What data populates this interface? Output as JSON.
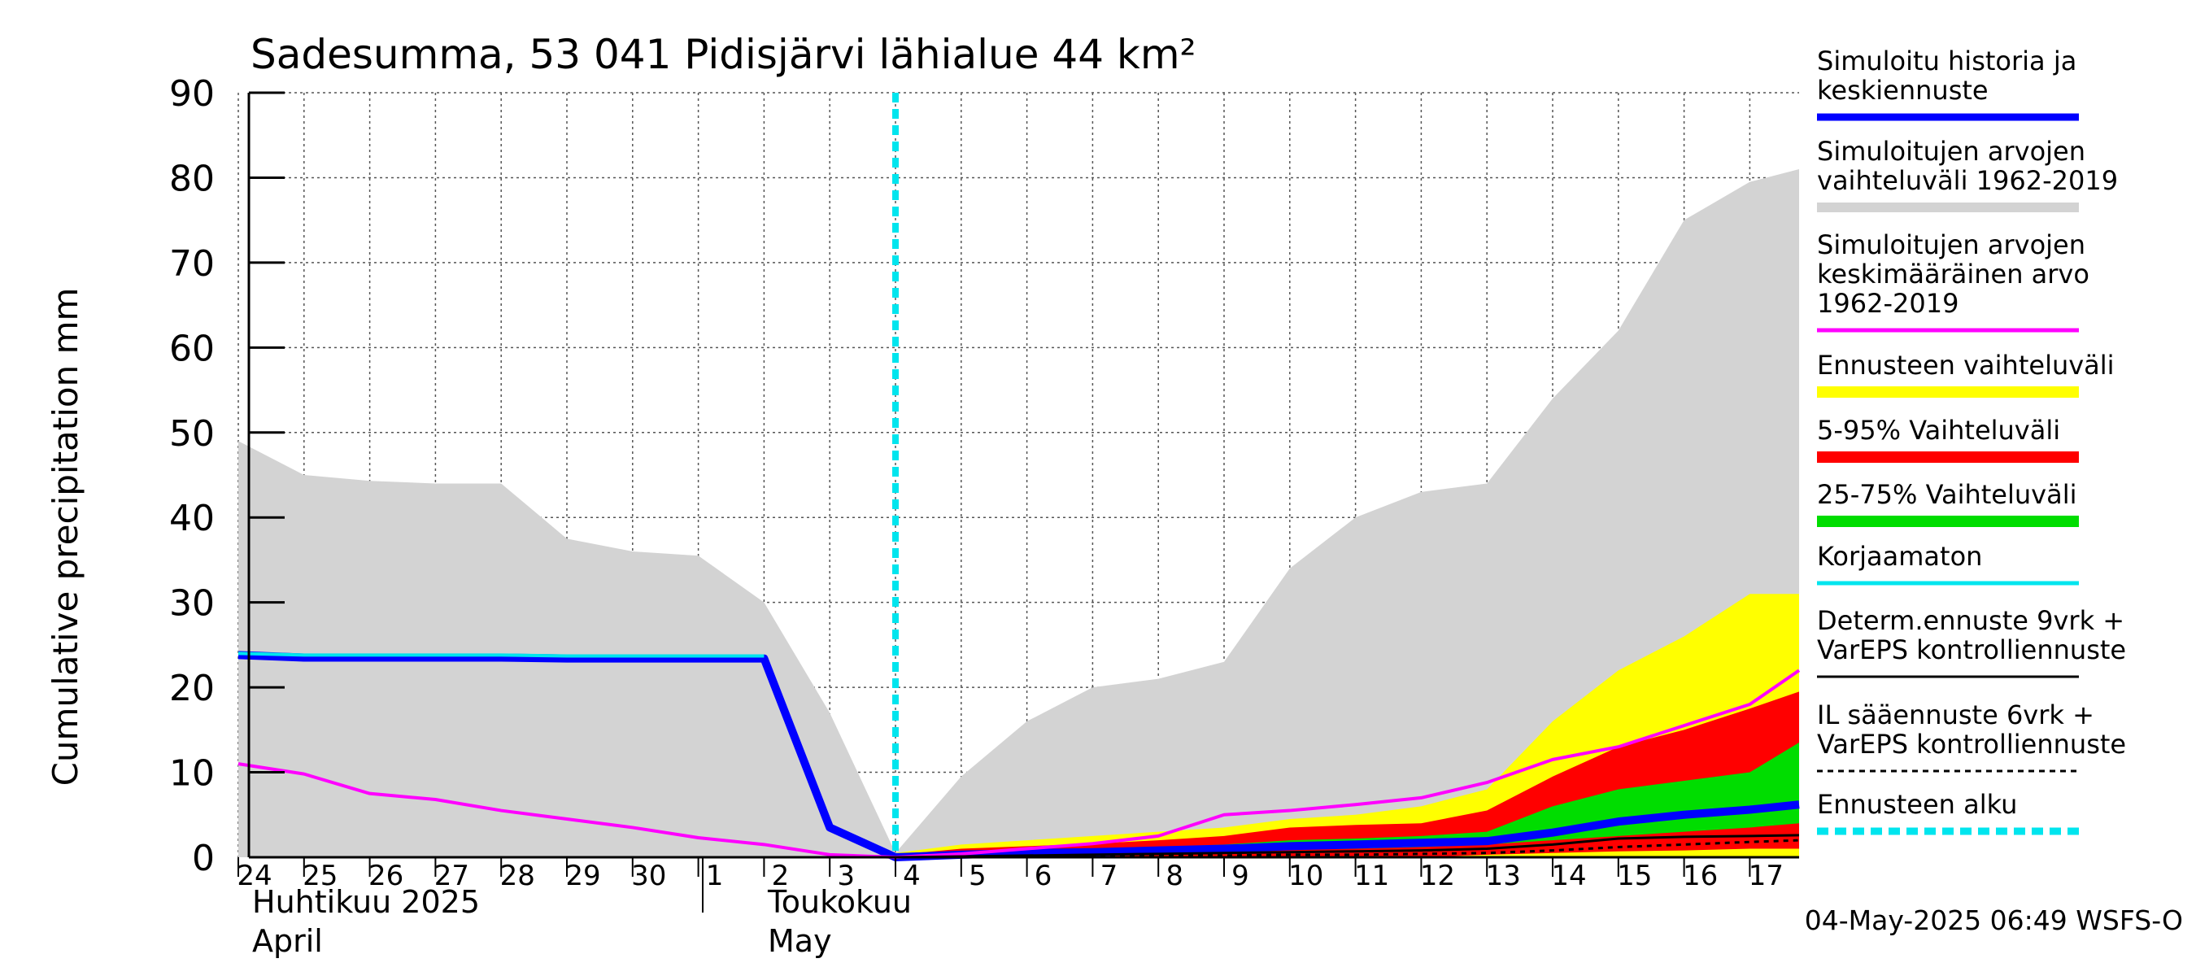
{
  "chart_data": {
    "type": "area",
    "title": "Sadesumma, 53 041 Pidisjärvi lähialue 44 km²",
    "ylabel": "Cumulative precipitation   mm",
    "ylim": [
      0,
      90
    ],
    "yticks": [
      "0",
      "10",
      "20",
      "30",
      "40",
      "50",
      "60",
      "70",
      "80",
      "90"
    ],
    "grid": true,
    "legend_position": "right",
    "x_days": [
      -10,
      -9,
      -8,
      -7,
      -6,
      -5,
      -4,
      -3,
      -2,
      -1,
      0,
      1,
      2,
      3,
      4,
      5,
      6,
      7,
      8,
      9,
      10,
      11,
      12,
      13,
      14
    ],
    "x_tick_labels": [
      "24",
      "25",
      "26",
      "27",
      "28",
      "29",
      "30",
      "1",
      "2",
      "3",
      "4",
      "5",
      "6",
      "7",
      "8",
      "9",
      "10",
      "11",
      "12",
      "13",
      "14",
      "15",
      "16",
      "17"
    ],
    "month_labels": [
      {
        "line1": "Huhtikuu  2025",
        "line2": "April"
      },
      {
        "line1": "Toukokuu",
        "line2": "May"
      }
    ],
    "forecast_start": "4",
    "series": [
      {
        "name": "Simuloitujen arvojen vaihteluväli 1962-2019",
        "color": "#d3d3d3",
        "kind": "band",
        "hist_x": [
          "24",
          "25",
          "26",
          "27",
          "28",
          "29",
          "30",
          "1",
          "2",
          "3",
          "4"
        ],
        "hist_upper": [
          49,
          45,
          44.3,
          44,
          44,
          37.5,
          36,
          35.5,
          30,
          17,
          0.5
        ],
        "fut_x": [
          "4",
          "5",
          "6",
          "7",
          "8",
          "9",
          "10",
          "11",
          "12",
          "13",
          "14",
          "15",
          "16",
          "17",
          "end"
        ],
        "fut_upper": [
          0.5,
          9.5,
          16,
          20,
          21,
          23,
          34,
          40,
          43,
          44,
          54,
          62,
          75,
          79.5,
          81
        ]
      },
      {
        "name": "Ennusteen vaihteluväli",
        "color": "#ffff00",
        "kind": "band",
        "x": [
          "4",
          "5",
          "6",
          "7",
          "8",
          "9",
          "10",
          "11",
          "12",
          "13",
          "14",
          "15",
          "16",
          "17",
          "end"
        ],
        "lower": [
          0,
          0,
          0,
          0,
          0,
          0,
          0,
          0,
          0,
          0,
          0,
          0,
          0,
          0,
          0
        ],
        "upper": [
          0.5,
          1.5,
          2,
          2.5,
          3,
          3.5,
          4.5,
          5,
          6,
          8,
          16,
          22,
          26,
          31,
          31
        ]
      },
      {
        "name": "5-95% Vaihteluväli",
        "color": "#ff0000",
        "kind": "band",
        "x": [
          "4",
          "5",
          "6",
          "7",
          "8",
          "9",
          "10",
          "11",
          "12",
          "13",
          "14",
          "15",
          "16",
          "17",
          "end"
        ],
        "lower": [
          0,
          0,
          0,
          0,
          0,
          0,
          0,
          0,
          0,
          0.3,
          0.5,
          0.7,
          0.8,
          1,
          1
        ],
        "upper": [
          0.3,
          1,
          1.3,
          1.6,
          2,
          2.5,
          3.5,
          3.8,
          4,
          5.5,
          9.5,
          13,
          15,
          17.5,
          19.5
        ]
      },
      {
        "name": "25-75% Vaihteluväli",
        "color": "#00dd00",
        "kind": "band",
        "x": [
          "4",
          "5",
          "6",
          "7",
          "8",
          "9",
          "10",
          "11",
          "12",
          "13",
          "14",
          "15",
          "16",
          "17",
          "end"
        ],
        "lower": [
          0,
          0.2,
          0.3,
          0.4,
          0.5,
          0.7,
          0.9,
          1,
          1.2,
          1.5,
          2,
          2.5,
          3,
          3.5,
          4
        ],
        "upper": [
          0.1,
          0.6,
          0.8,
          1,
          1.2,
          1.5,
          2,
          2.2,
          2.5,
          3,
          6,
          8,
          9,
          10,
          13.5
        ]
      },
      {
        "name": "Simuloitu historia ja keskiennuste",
        "color": "#0000ff",
        "kind": "line",
        "x": [
          "24",
          "25",
          "26",
          "27",
          "28",
          "29",
          "30",
          "1",
          "2",
          "3",
          "4",
          "5",
          "6",
          "7",
          "8",
          "9",
          "10",
          "11",
          "12",
          "13",
          "14",
          "15",
          "16",
          "17",
          "end"
        ],
        "values": [
          23.8,
          23.5,
          23.5,
          23.5,
          23.5,
          23.4,
          23.4,
          23.4,
          23.4,
          3.5,
          0,
          0.3,
          0.5,
          0.6,
          0.8,
          1,
          1.3,
          1.5,
          1.7,
          1.9,
          2.9,
          4.2,
          5,
          5.6,
          6.2
        ]
      },
      {
        "name": "Korjaamaton",
        "color": "#00e5ee",
        "kind": "line",
        "x": [
          "24",
          "25",
          "26",
          "27",
          "28",
          "29",
          "30",
          "1",
          "2"
        ],
        "values": [
          24,
          23.8,
          23.8,
          23.8,
          23.8,
          23.7,
          23.7,
          23.7,
          23.7
        ]
      },
      {
        "name": "Simuloitujen arvojen keskimääräinen arvo 1962-2019",
        "color": "#ff00ff",
        "kind": "line",
        "x": [
          "24",
          "25",
          "26",
          "27",
          "28",
          "29",
          "30",
          "1",
          "2",
          "3",
          "4",
          "5",
          "6",
          "7",
          "8",
          "9",
          "10",
          "11",
          "12",
          "13",
          "14",
          "15",
          "16",
          "17",
          "end"
        ],
        "values": [
          11,
          9.8,
          7.5,
          6.8,
          5.5,
          4.5,
          3.5,
          2.3,
          1.5,
          0.3,
          0,
          0.4,
          1,
          1.6,
          2.5,
          5,
          5.5,
          6.2,
          7,
          8.8,
          11.5,
          13,
          15.5,
          18,
          22
        ]
      },
      {
        "name": "Determ.ennuste 9vrk + VarEPS kontrolliennuste",
        "color": "#000000",
        "kind": "line",
        "x": [
          "4",
          "5",
          "6",
          "7",
          "8",
          "9",
          "10",
          "11",
          "12",
          "13",
          "14",
          "15",
          "16",
          "17",
          "end"
        ],
        "values": [
          0,
          0.1,
          0.2,
          0.3,
          0.4,
          0.5,
          0.6,
          0.7,
          0.8,
          1,
          1.5,
          2.2,
          2.4,
          2.5,
          2.6
        ]
      },
      {
        "name": "IL sääennuste 6vrk + VarEPS kontrolliennuste",
        "color": "#000000",
        "kind": "dashed",
        "x": [
          "4",
          "5",
          "6",
          "7",
          "8",
          "9",
          "10",
          "11",
          "12",
          "13",
          "14",
          "15",
          "16",
          "17",
          "end"
        ],
        "values": [
          0,
          0,
          0.1,
          0.1,
          0.2,
          0.2,
          0.3,
          0.3,
          0.4,
          0.5,
          0.8,
          1.2,
          1.5,
          1.8,
          2
        ]
      }
    ],
    "legend": [
      {
        "lines": [
          "Simuloitu historia ja",
          "keskiennuste"
        ],
        "color": "#0000ff",
        "style": "solid",
        "width": 9
      },
      {
        "lines": [
          "Simuloitujen arvojen",
          "vaihteluväli 1962-2019"
        ],
        "color": "#d3d3d3",
        "style": "solid",
        "width": 12
      },
      {
        "lines": [
          "Simuloitujen arvojen",
          "keskimääräinen arvo",
          "   1962-2019"
        ],
        "color": "#ff00ff",
        "style": "solid",
        "width": 5
      },
      {
        "lines": [
          "Ennusteen vaihteluväli"
        ],
        "color": "#ffff00",
        "style": "solid",
        "width": 14
      },
      {
        "lines": [
          "5-95% Vaihteluväli"
        ],
        "color": "#ff0000",
        "style": "solid",
        "width": 14
      },
      {
        "lines": [
          "25-75% Vaihteluväli"
        ],
        "color": "#00dd00",
        "style": "solid",
        "width": 14
      },
      {
        "lines": [
          "Korjaamaton"
        ],
        "color": "#00e5ee",
        "style": "solid",
        "width": 5
      },
      {
        "lines": [
          "Determ.ennuste 9vrk +",
          "VarEPS kontrolliennuste"
        ],
        "color": "#000000",
        "style": "solid",
        "width": 3
      },
      {
        "lines": [
          "IL sääennuste 6vrk  +",
          "  VarEPS kontrolliennuste"
        ],
        "color": "#000000",
        "style": "dashed",
        "width": 3
      },
      {
        "lines": [
          "Ennusteen alku"
        ],
        "color": "#00e5ee",
        "style": "dashed",
        "width": 9
      }
    ],
    "footer": "04-May-2025 06:49 WSFS-O"
  }
}
